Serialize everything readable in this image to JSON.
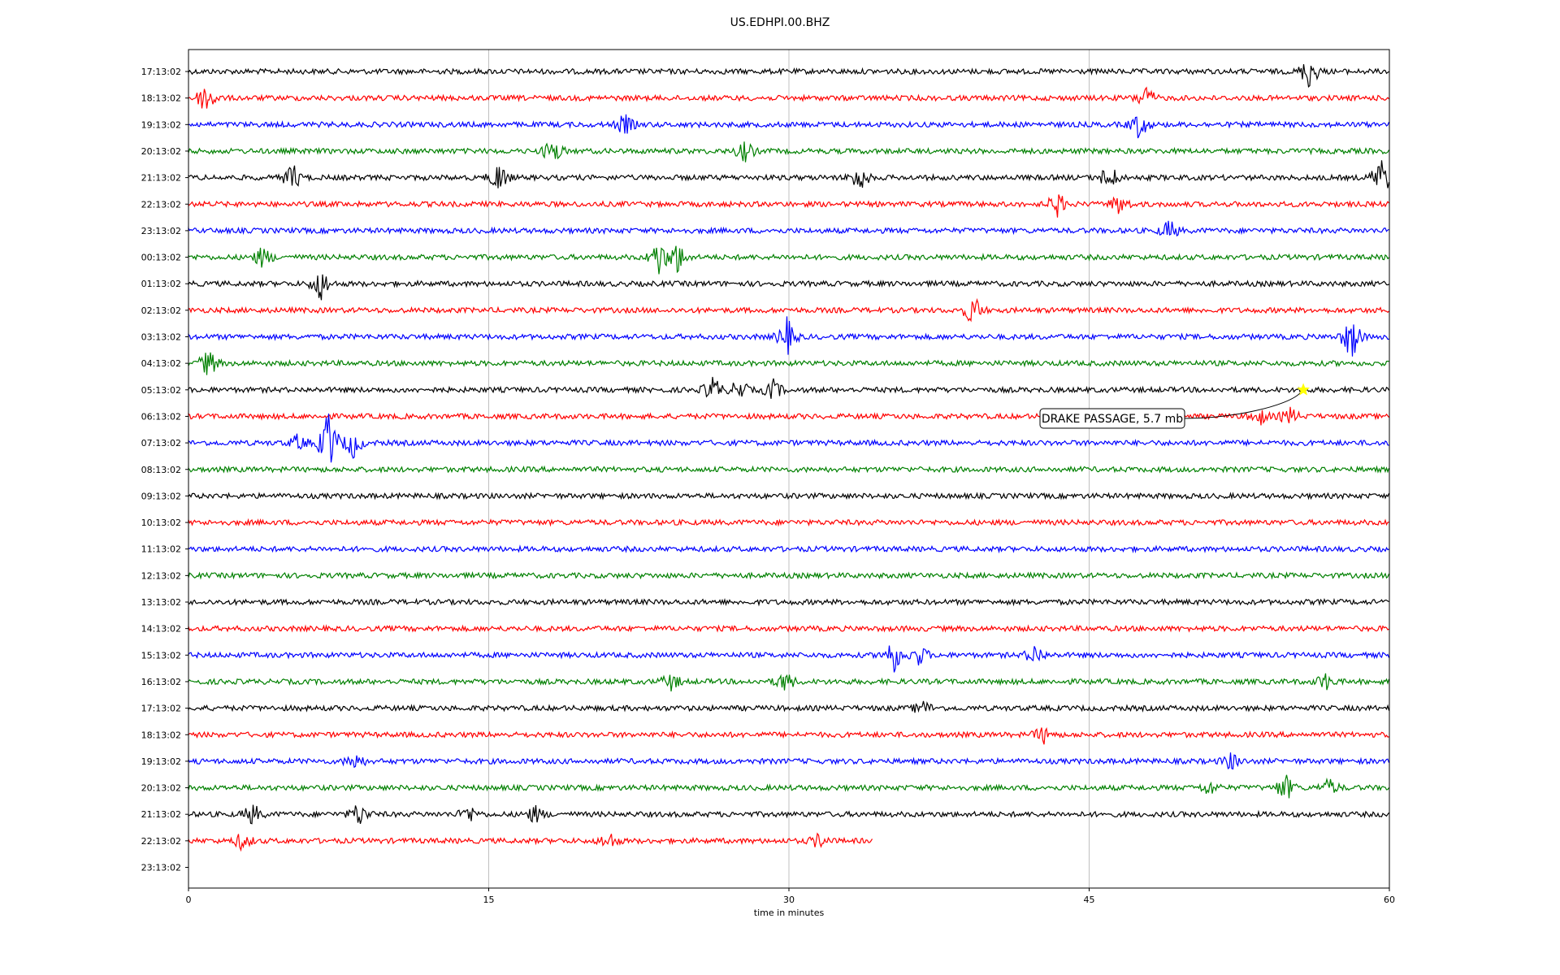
{
  "title": "US.EDHPI.00.BHZ",
  "chart_data": {
    "type": "line",
    "title": "US.EDHPI.00.BHZ",
    "xlabel": "time in minutes",
    "ylabel": "",
    "xlim": [
      0,
      60
    ],
    "xticks": [
      "0",
      "15",
      "30",
      "45",
      "60"
    ],
    "hour_labels": [
      "17:13:02",
      "18:13:02",
      "19:13:02",
      "20:13:02",
      "21:13:02",
      "22:13:02",
      "23:13:02",
      "00:13:02",
      "01:13:02",
      "02:13:02",
      "03:13:02",
      "04:13:02",
      "05:13:02",
      "06:13:02",
      "07:13:02",
      "08:13:02",
      "09:13:02",
      "10:13:02",
      "11:13:02",
      "12:13:02",
      "13:13:02",
      "14:13:02",
      "15:13:02",
      "16:13:02",
      "17:13:02",
      "18:13:02",
      "19:13:02",
      "20:13:02",
      "21:13:02",
      "22:13:02",
      "23:13:02"
    ],
    "trace_colors": [
      "#000000",
      "#ff0000",
      "#0000ff",
      "#008000"
    ],
    "last_trace_end_minute": 34.2,
    "grid": "vertical",
    "events": [
      {
        "row": 0,
        "minute": 56.0,
        "amp": 1.0
      },
      {
        "row": 1,
        "minute": 0.9,
        "amp": 1.0
      },
      {
        "row": 1,
        "minute": 47.8,
        "amp": 0.7
      },
      {
        "row": 2,
        "minute": 21.8,
        "amp": 0.6
      },
      {
        "row": 2,
        "minute": 47.5,
        "amp": 0.8
      },
      {
        "row": 3,
        "minute": 18.2,
        "amp": 0.8
      },
      {
        "row": 3,
        "minute": 27.8,
        "amp": 0.6
      },
      {
        "row": 4,
        "minute": 5.2,
        "amp": 0.8
      },
      {
        "row": 4,
        "minute": 15.5,
        "amp": 0.9
      },
      {
        "row": 4,
        "minute": 33.5,
        "amp": 0.8
      },
      {
        "row": 4,
        "minute": 46.0,
        "amp": 0.8
      },
      {
        "row": 4,
        "minute": 59.6,
        "amp": 1.3
      },
      {
        "row": 5,
        "minute": 43.4,
        "amp": 0.7
      },
      {
        "row": 5,
        "minute": 46.5,
        "amp": 0.6
      },
      {
        "row": 6,
        "minute": 49.0,
        "amp": 0.6
      },
      {
        "row": 7,
        "minute": 3.7,
        "amp": 0.6
      },
      {
        "row": 7,
        "minute": 23.5,
        "amp": 1.1
      },
      {
        "row": 7,
        "minute": 24.4,
        "amp": 1.0
      },
      {
        "row": 8,
        "minute": 6.6,
        "amp": 1.0
      },
      {
        "row": 9,
        "minute": 39.2,
        "amp": 0.9
      },
      {
        "row": 10,
        "minute": 29.9,
        "amp": 1.1
      },
      {
        "row": 10,
        "minute": 58.1,
        "amp": 1.4
      },
      {
        "row": 11,
        "minute": 1.0,
        "amp": 0.8
      },
      {
        "row": 12,
        "minute": 26.2,
        "amp": 0.8
      },
      {
        "row": 12,
        "minute": 27.5,
        "amp": 0.6
      },
      {
        "row": 12,
        "minute": 29.2,
        "amp": 0.6
      },
      {
        "row": 13,
        "minute": 53.5,
        "amp": 0.5
      },
      {
        "row": 13,
        "minute": 55.0,
        "amp": 0.5
      },
      {
        "row": 14,
        "minute": 5.5,
        "amp": 0.5
      },
      {
        "row": 14,
        "minute": 7.0,
        "amp": 2.0
      },
      {
        "row": 14,
        "minute": 8.2,
        "amp": 0.9
      },
      {
        "row": 22,
        "minute": 35.2,
        "amp": 1.1
      },
      {
        "row": 22,
        "minute": 36.5,
        "amp": 0.6
      },
      {
        "row": 22,
        "minute": 42.3,
        "amp": 0.6
      },
      {
        "row": 23,
        "minute": 24.1,
        "amp": 0.5
      },
      {
        "row": 23,
        "minute": 29.8,
        "amp": 0.6
      },
      {
        "row": 23,
        "minute": 56.8,
        "amp": 0.5
      },
      {
        "row": 24,
        "minute": 36.7,
        "amp": 0.4
      },
      {
        "row": 25,
        "minute": 42.7,
        "amp": 0.5
      },
      {
        "row": 26,
        "minute": 8.3,
        "amp": 0.5
      },
      {
        "row": 26,
        "minute": 52.1,
        "amp": 0.5
      },
      {
        "row": 27,
        "minute": 51.0,
        "amp": 0.4
      },
      {
        "row": 27,
        "minute": 54.8,
        "amp": 0.8
      },
      {
        "row": 27,
        "minute": 57.0,
        "amp": 0.5
      },
      {
        "row": 28,
        "minute": 3.2,
        "amp": 0.6
      },
      {
        "row": 28,
        "minute": 8.5,
        "amp": 0.7
      },
      {
        "row": 28,
        "minute": 14.0,
        "amp": 0.5
      },
      {
        "row": 28,
        "minute": 17.3,
        "amp": 0.5
      },
      {
        "row": 29,
        "minute": 2.7,
        "amp": 0.5
      },
      {
        "row": 29,
        "minute": 21.0,
        "amp": 0.5
      },
      {
        "row": 29,
        "minute": 31.5,
        "amp": 0.4
      }
    ],
    "annotations": [
      {
        "text": "DRAKE PASSAGE, 5.7 mb",
        "row": 12,
        "minute": 55.7,
        "marker": "star",
        "marker_color": "#ffff00"
      }
    ]
  }
}
